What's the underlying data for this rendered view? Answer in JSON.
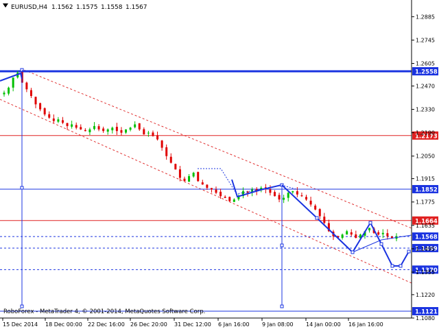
{
  "header": {
    "triangle_icon": "triangle-down-icon",
    "symbol": "EURUSD,H4",
    "open": "1.1562",
    "high": "1.1575",
    "low": "1.1558",
    "close": "1.1567"
  },
  "footer": {
    "copyright": "RoboForex - MetaTrader 4, © 2001-2014, MetaQuotes Software Corp."
  },
  "colors": {
    "background": "#ffffff",
    "grid": "#c8c8c8",
    "bull": "#00c000",
    "bear": "#e00000",
    "doji": "#000000",
    "blue": "#1a33e0",
    "red": "#e02020",
    "channel": "#e03030",
    "label_blue": "#1a33e0",
    "label_red": "#e02020"
  },
  "chart_data": {
    "type": "candlestick",
    "title": "EURUSD,H4",
    "ylim": [
      1.108,
      1.2985
    ],
    "y_ticks": [
      1.2885,
      1.2745,
      1.2605,
      1.247,
      1.233,
      1.219,
      1.205,
      1.1915,
      1.1775,
      1.1635,
      1.1495,
      1.1355,
      1.122,
      1.108
    ],
    "x_ticks": [
      "15 Dec 2014",
      "18 Dec 00:00",
      "22 Dec 16:00",
      "26 Dec 20:00",
      "31 Dec 12:00",
      "6 Jan 16:00",
      "9 Jan 08:00",
      "14 Jan 00:00",
      "16 Jan 16:00"
    ],
    "close_path": [
      1.243,
      1.246,
      1.252,
      1.255,
      1.249,
      1.245,
      1.241,
      1.236,
      1.233,
      1.23,
      1.228,
      1.226,
      1.227,
      1.225,
      1.223,
      1.224,
      1.222,
      1.221,
      1.22,
      1.221,
      1.223,
      1.221,
      1.22,
      1.221,
      1.222,
      1.22,
      1.219,
      1.221,
      1.222,
      1.224,
      1.221,
      1.218,
      1.219,
      1.217,
      1.215,
      1.21,
      1.205,
      1.201,
      1.197,
      1.192,
      1.19,
      1.193,
      1.195,
      1.19,
      1.188,
      1.186,
      1.185,
      1.183,
      1.181,
      1.18,
      1.178,
      1.179,
      1.181,
      1.184,
      1.183,
      1.185,
      1.184,
      1.186,
      1.185,
      1.183,
      1.181,
      1.179,
      1.18,
      1.183,
      1.184,
      1.182,
      1.181,
      1.179,
      1.176,
      1.173,
      1.169,
      1.165,
      1.16,
      1.157,
      1.156,
      1.158,
      1.16,
      1.158,
      1.156,
      1.158,
      1.16,
      1.162,
      1.159,
      1.158,
      1.159,
      1.157,
      1.156,
      1.157
    ],
    "levels": [
      {
        "value": 1.2558,
        "label": "1.2558",
        "style": "solid-thick",
        "color": "blue"
      },
      {
        "value": 1.2173,
        "label": "1.2173",
        "style": "solid",
        "color": "red"
      },
      {
        "value": 1.1852,
        "label": "1.1852",
        "style": "solid",
        "color": "blue"
      },
      {
        "value": 1.1664,
        "label": "1.1664",
        "style": "solid",
        "color": "red"
      },
      {
        "value": 1.1568,
        "label": "1.1568",
        "style": "dashed",
        "color": "blue"
      },
      {
        "value": 1.1499,
        "label": "1.1499",
        "style": "dashed",
        "color": "blue"
      },
      {
        "value": 1.137,
        "label": "1.1370",
        "style": "dashed",
        "color": "blue"
      },
      {
        "value": 1.1121,
        "label": "1.1121",
        "style": "solid",
        "color": "blue"
      }
    ],
    "forecast_path": [
      1.1568,
      1.1499,
      1.137,
      1.137,
      1.1499
    ],
    "trend_path": [
      1.1852,
      1.178,
      1.172,
      1.166,
      1.16,
      1.156,
      1.154,
      1.15,
      1.147,
      1.1465
    ]
  }
}
